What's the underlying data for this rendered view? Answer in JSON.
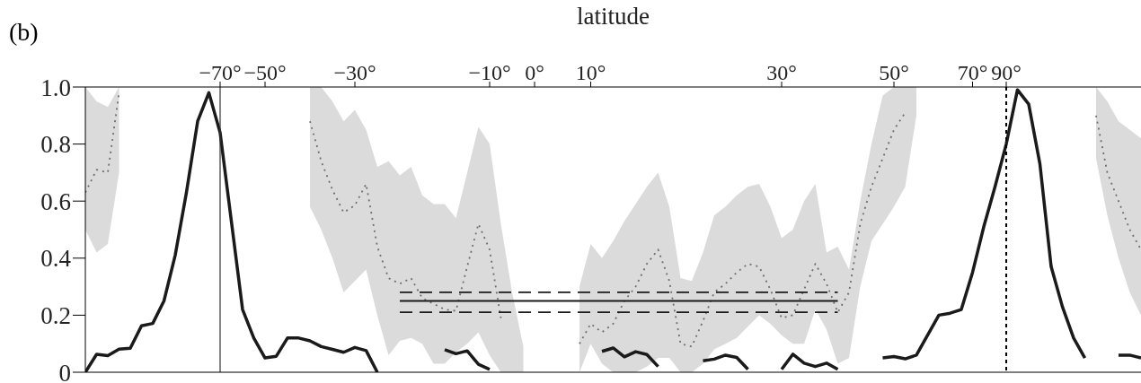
{
  "chart_data": {
    "type": "line",
    "xlabel": "latitude",
    "annotations": [
      "(b)"
    ],
    "categories": [
      null,
      null,
      null,
      null,
      null,
      null,
      null,
      null,
      null,
      null,
      null,
      null,
      "−70°",
      null,
      null,
      null,
      "−50°",
      null,
      null,
      null,
      null,
      null,
      null,
      null,
      "−30°",
      null,
      null,
      null,
      null,
      null,
      null,
      null,
      null,
      null,
      null,
      null,
      "−10°",
      null,
      null,
      null,
      "0°",
      null,
      null,
      null,
      null,
      "10°",
      null,
      null,
      null,
      null,
      null,
      null,
      null,
      null,
      null,
      null,
      null,
      null,
      null,
      null,
      null,
      null,
      "30°",
      null,
      null,
      null,
      null,
      null,
      null,
      null,
      null,
      null,
      "50°",
      null,
      null,
      null,
      null,
      null,
      null,
      "70°",
      null,
      null,
      "90°",
      null,
      null,
      null,
      null,
      null,
      null,
      null,
      null,
      null,
      null,
      null,
      null
    ],
    "series": [
      {
        "color": "#1a1a1a",
        "line_style": "solid",
        "values": [
          0,
          0.063,
          0.058,
          0.081,
          0.084,
          0.163,
          0.171,
          0.25,
          0.41,
          0.63,
          0.88,
          0.98,
          0.84,
          0.53,
          0.22,
          0.12,
          0.05,
          0.056,
          0.12,
          0.12,
          0.11,
          0.09,
          0.08,
          0.07,
          0.087,
          0.076,
          0,
          null,
          null,
          null,
          null,
          null,
          0.079,
          0.065,
          0.075,
          0.028,
          0.01,
          null,
          null,
          null,
          null,
          null,
          null,
          null,
          null,
          null,
          0.073,
          0.085,
          0.054,
          0.072,
          0.062,
          0.02,
          null,
          null,
          null,
          0.04,
          0.046,
          0.06,
          0.052,
          0.01,
          null,
          null,
          0.01,
          0.063,
          0.032,
          0.02,
          0.032,
          0.01,
          null,
          null,
          null,
          0.05,
          0.055,
          0.047,
          0.06,
          0.13,
          0.2,
          0.207,
          0.22,
          0.35,
          0.51,
          0.65,
          0.8,
          0.99,
          0.94,
          0.73,
          0.37,
          0.23,
          0.12,
          0.05,
          null,
          null,
          0.06,
          0.06,
          0.05
        ]
      },
      {
        "color": "#6e6e6e",
        "line_style": "dotted",
        "values": [
          0.63,
          0.71,
          0.7,
          0.98,
          null,
          null,
          null,
          null,
          null,
          null,
          null,
          null,
          null,
          null,
          null,
          null,
          null,
          null,
          null,
          null,
          0.88,
          0.74,
          0.64,
          0.56,
          0.585,
          0.66,
          0.44,
          0.33,
          0.31,
          0.33,
          0.26,
          0.24,
          0.22,
          0.215,
          0.37,
          0.52,
          0.43,
          0.19,
          null,
          null,
          null,
          null,
          null,
          null,
          0.1,
          0.17,
          0.14,
          0.17,
          0.25,
          0.3,
          0.38,
          0.43,
          0.32,
          0.1,
          0.09,
          0.18,
          0.28,
          0.31,
          0.35,
          0.38,
          0.37,
          0.29,
          0.19,
          0.2,
          0.29,
          0.38,
          0.31,
          0.21,
          0.28,
          0.52,
          0.65,
          0.75,
          0.85,
          0.91,
          null,
          null,
          null,
          null,
          null,
          null,
          null,
          null,
          null,
          null,
          null,
          null,
          null,
          null,
          null,
          null,
          0.9,
          0.7,
          0.6,
          0.5,
          0.43
        ],
        "lower": [
          0.5,
          0.42,
          0.45,
          0.7,
          null,
          null,
          null,
          null,
          null,
          null,
          null,
          null,
          null,
          null,
          null,
          null,
          null,
          null,
          null,
          null,
          0.58,
          0.5,
          0.4,
          0.28,
          0.32,
          0.36,
          0.2,
          0.06,
          0.11,
          0.12,
          0.1,
          0.03,
          0.03,
          0.07,
          0.1,
          0.14,
          0.06,
          0,
          0,
          0,
          null,
          null,
          null,
          null,
          0,
          0.1,
          0.03,
          0,
          0,
          0,
          0.02,
          0.05,
          0.05,
          0,
          0,
          0.03,
          0.08,
          0.1,
          0.12,
          0.16,
          0.2,
          0.17,
          0.13,
          0.1,
          0.1,
          0.22,
          0.15,
          0.03,
          0.05,
          0.3,
          0.46,
          0.52,
          0.58,
          0.65,
          0.9,
          null,
          null,
          null,
          null,
          null,
          null,
          null,
          null,
          null,
          null,
          null,
          null,
          null,
          null,
          null,
          0.75,
          0.55,
          0.4,
          0.28,
          0.2
        ],
        "upper": [
          1,
          0.95,
          0.93,
          1,
          null,
          null,
          null,
          null,
          null,
          null,
          null,
          null,
          null,
          null,
          null,
          null,
          null,
          null,
          null,
          null,
          1,
          1,
          0.95,
          0.88,
          0.92,
          0.85,
          0.72,
          0.74,
          0.69,
          0.72,
          0.62,
          0.59,
          0.59,
          0.54,
          0.7,
          0.86,
          0.8,
          0.52,
          0.28,
          0.09,
          null,
          null,
          null,
          null,
          0.3,
          0.45,
          0.4,
          0.46,
          0.53,
          0.59,
          0.65,
          0.7,
          0.58,
          0.33,
          0.32,
          0.42,
          0.55,
          0.58,
          0.62,
          0.65,
          0.66,
          0.58,
          0.47,
          0.5,
          0.6,
          0.66,
          0.42,
          0.44,
          0.36,
          0.6,
          0.8,
          0.97,
          1,
          1,
          1,
          null,
          null,
          null,
          null,
          null,
          null,
          null,
          null,
          null,
          null,
          null,
          null,
          null,
          null,
          null,
          1,
          0.95,
          0.88,
          0.85,
          0.82
        ]
      },
      {
        "color": "#1a1a1a",
        "line_style": "solid",
        "values": [
          null,
          null,
          null,
          null,
          null,
          null,
          null,
          null,
          null,
          null,
          null,
          null,
          null,
          null,
          null,
          null,
          null,
          null,
          null,
          null,
          null,
          null,
          null,
          null,
          null,
          null,
          null,
          null,
          0.25,
          0.25,
          0.25,
          0.25,
          0.25,
          0.25,
          0.25,
          0.25,
          0.25,
          0.25,
          0.25,
          0.25,
          0.25,
          0.25,
          0.25,
          0.25,
          0.25,
          0.25,
          0.25,
          0.25,
          0.25,
          0.25,
          0.25,
          0.25,
          0.25,
          0.25,
          0.25,
          0.25,
          0.25,
          0.25,
          0.25,
          0.25,
          0.25,
          0.25,
          0.25,
          0.25,
          0.25,
          0.25,
          0.25,
          0.25,
          null,
          null,
          null,
          null,
          null,
          null,
          null,
          null,
          null,
          null,
          null,
          null,
          null,
          null,
          null,
          null,
          null,
          null,
          null,
          null,
          null,
          null,
          null,
          null,
          null,
          null,
          null
        ]
      },
      {
        "color": "#1a1a1a",
        "line_style": "dashed",
        "values": [
          null,
          null,
          null,
          null,
          null,
          null,
          null,
          null,
          null,
          null,
          null,
          null,
          null,
          null,
          null,
          null,
          null,
          null,
          null,
          null,
          null,
          null,
          null,
          null,
          null,
          null,
          null,
          null,
          0.28,
          0.28,
          0.28,
          0.28,
          0.28,
          0.28,
          0.28,
          0.28,
          0.28,
          0.28,
          0.28,
          0.28,
          0.28,
          0.28,
          0.28,
          0.28,
          0.28,
          0.28,
          0.28,
          0.28,
          0.28,
          0.28,
          0.28,
          0.28,
          0.28,
          0.28,
          0.28,
          0.28,
          0.28,
          0.28,
          0.28,
          0.28,
          0.28,
          0.28,
          0.28,
          0.28,
          0.28,
          0.28,
          0.28,
          0.28,
          null,
          null,
          null,
          null,
          null,
          null,
          null,
          null,
          null,
          null,
          null,
          null,
          null,
          null,
          null,
          null,
          null,
          null,
          null,
          null,
          null,
          null,
          null,
          null,
          null,
          null,
          null
        ]
      },
      {
        "color": "#1a1a1a",
        "line_style": "dashed",
        "values": [
          null,
          null,
          null,
          null,
          null,
          null,
          null,
          null,
          null,
          null,
          null,
          null,
          null,
          null,
          null,
          null,
          null,
          null,
          null,
          null,
          null,
          null,
          null,
          null,
          null,
          null,
          null,
          null,
          0.21,
          0.21,
          0.21,
          0.21,
          0.21,
          0.21,
          0.21,
          0.21,
          0.21,
          0.21,
          0.21,
          0.21,
          0.21,
          0.21,
          0.21,
          0.21,
          0.21,
          0.21,
          0.21,
          0.21,
          0.21,
          0.21,
          0.21,
          0.21,
          0.21,
          0.21,
          0.21,
          0.21,
          0.21,
          0.21,
          0.21,
          0.21,
          0.21,
          0.21,
          0.21,
          0.21,
          0.21,
          0.21,
          0.21,
          0.21,
          null,
          null,
          null,
          null,
          null,
          null,
          null,
          null,
          null,
          null,
          null,
          null,
          null,
          null,
          null,
          null,
          null,
          null,
          null,
          null,
          null,
          null,
          null,
          null,
          null,
          null,
          null
        ]
      }
    ],
    "ylim": [
      0,
      1
    ],
    "yticks": [
      0,
      {
        "value": 0.2,
        "label": "0.2"
      },
      {
        "value": 0.4,
        "label": "0.4"
      },
      {
        "value": 0.6,
        "label": "0.6"
      },
      {
        "value": 0.8,
        "label": "0.8"
      },
      {
        "value": 1,
        "label": "1.0"
      }
    ],
    "ref_lines": [
      {
        "axis": "x",
        "value": "−70°",
        "line_style": "solid",
        "color": "#333333"
      },
      {
        "axis": "x",
        "value": "90°",
        "line_style": "dotted",
        "color": "#000000"
      }
    ]
  }
}
